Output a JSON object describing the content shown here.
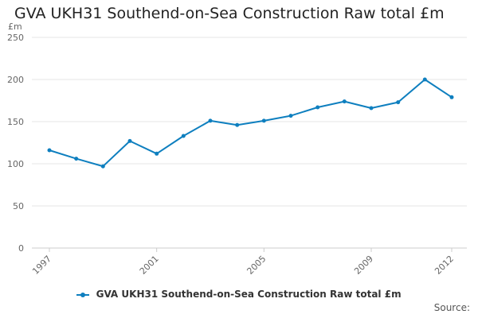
{
  "chart_data": {
    "type": "line",
    "title": "GVA UKH31 Southend-on-Sea Construction Raw total £m",
    "unit_label": "£m",
    "x": [
      1997,
      1998,
      1999,
      2000,
      2001,
      2002,
      2003,
      2004,
      2005,
      2006,
      2007,
      2008,
      2009,
      2010,
      2011,
      2012
    ],
    "x_tick_labels": [
      "1997",
      "2001",
      "2005",
      "2009",
      "2012"
    ],
    "xlim": [
      1997,
      2012
    ],
    "ylim": [
      0,
      250
    ],
    "y_ticks": [
      0,
      50,
      100,
      150,
      200,
      250
    ],
    "series": [
      {
        "name": "GVA UKH31 Southend-on-Sea Construction Raw total £m",
        "values": [
          116,
          106,
          97,
          127,
          112,
          133,
          151,
          146,
          151,
          157,
          167,
          174,
          166,
          173,
          200,
          179
        ]
      }
    ],
    "grid": true,
    "legend_position": "bottom-center",
    "colors": {
      "series": "#0e7fbf",
      "grid": "#e6e6e6",
      "axis": "#cccccc"
    },
    "source_label": "Source:"
  }
}
